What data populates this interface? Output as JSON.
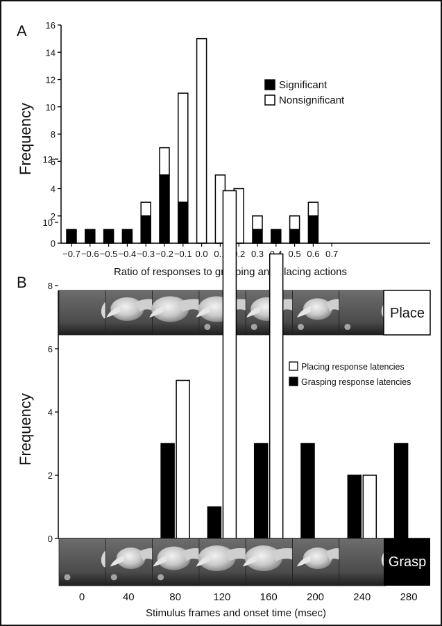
{
  "chart_data": [
    {
      "panel": "A",
      "type": "bar",
      "stacked": true,
      "categories": [
        "-0.7",
        "-0.6",
        "-0.5",
        "-0.4",
        "-0.3",
        "-0.2",
        "-0.1",
        "0.0",
        "0.1",
        "0.2",
        "0.3",
        "0.4",
        "0.5",
        "0.6",
        "0.7"
      ],
      "tick_labels": [
        "−0.7",
        "−0.6",
        "−0.5",
        "−0.4",
        "−0.3",
        "−0.2",
        "−0.1",
        "0.0",
        "0.1",
        "0.2",
        "0.3",
        "0.4",
        "0.5",
        "0.6",
        "0.7"
      ],
      "series": [
        {
          "name": "Significant",
          "color": "#000000",
          "values": [
            1,
            1,
            1,
            1,
            2,
            5,
            3,
            0,
            0,
            0,
            1,
            1,
            1,
            2,
            0
          ]
        },
        {
          "name": "Nonsignificant",
          "color": "#ffffff",
          "values": [
            0,
            0,
            0,
            0,
            1,
            2,
            8,
            15,
            5,
            4,
            1,
            0,
            1,
            1,
            0
          ]
        }
      ],
      "xlabel": "Ratio of responses to grasping and placing actions",
      "ylabel": "Frequency",
      "ylim": [
        0,
        16
      ],
      "yticks": [
        0,
        2,
        4,
        6,
        8,
        10,
        12,
        14,
        16
      ],
      "legend": "upper-right",
      "grid": false
    },
    {
      "panel": "B",
      "type": "bar",
      "grouped": true,
      "categories": [
        "0",
        "40",
        "80",
        "120",
        "160",
        "200",
        "240",
        "280"
      ],
      "series": [
        {
          "name": "Grasping response latencies",
          "color": "#000000",
          "values": [
            0,
            0,
            3,
            1,
            3,
            3,
            2,
            3
          ]
        },
        {
          "name": "Placing response latencies",
          "color": "#ffffff",
          "values": [
            0,
            0,
            5,
            11,
            9,
            0,
            2,
            0
          ]
        }
      ],
      "xlabel": "Stimulus frames and onset time (msec)",
      "ylabel": "Frequency",
      "ylim": [
        0,
        12
      ],
      "yticks": [
        0,
        2,
        4,
        6,
        8,
        10,
        12
      ],
      "legend": "upper-right",
      "grid": false
    }
  ],
  "panels": {
    "a_letter": "A",
    "b_letter": "B"
  },
  "strips": {
    "top_label": "Place",
    "bottom_label": "Grasp"
  },
  "legend_b": {
    "first": "Placing response latencies",
    "second": "Grasping response latencies"
  }
}
